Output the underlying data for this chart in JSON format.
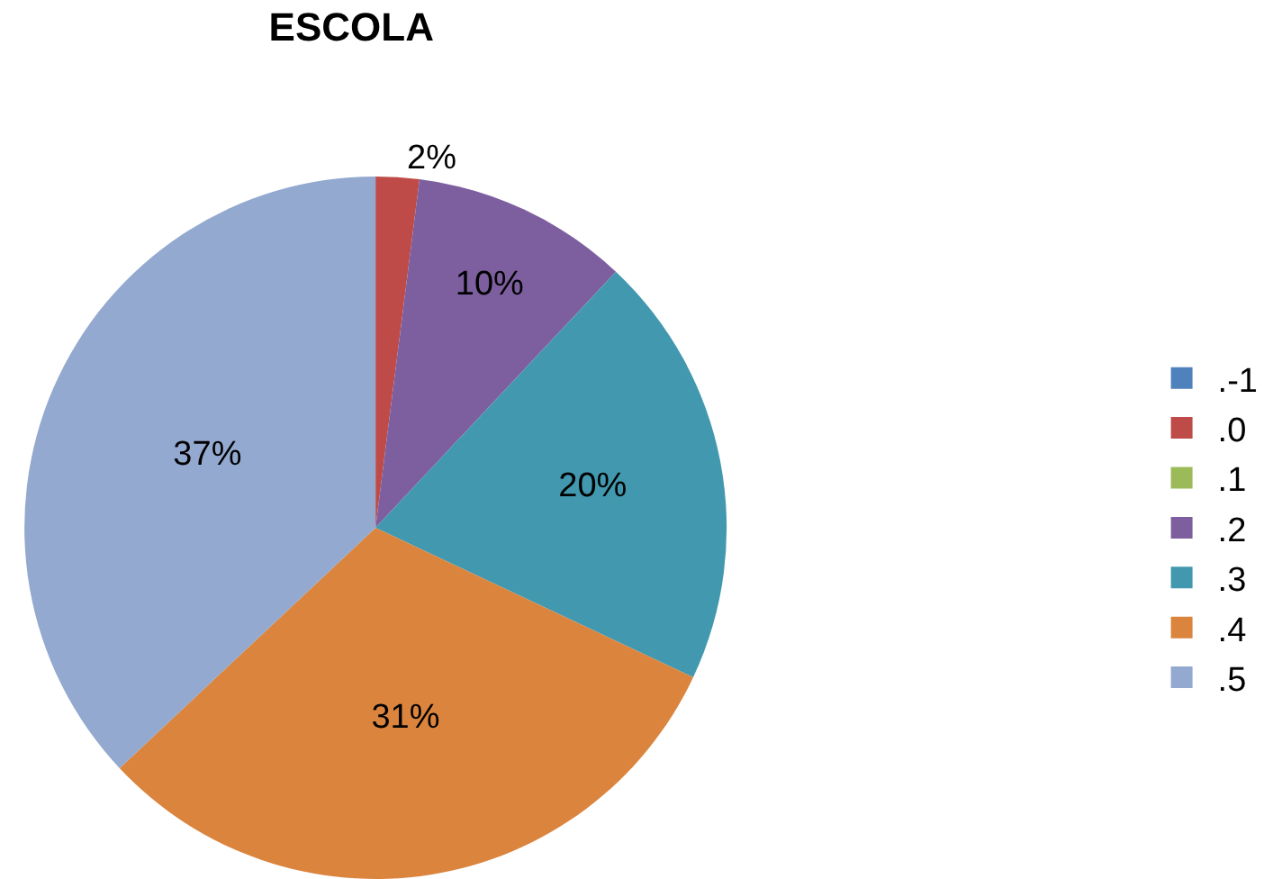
{
  "chart_data": {
    "type": "pie",
    "title": "ESCOLA",
    "categories": [
      ".-1",
      ".0",
      ".1",
      ".2",
      ".3",
      ".4",
      ".5"
    ],
    "values": [
      0,
      2,
      0,
      10,
      20,
      31,
      37
    ],
    "colors": [
      "#4f81bd",
      "#be4b48",
      "#9bbb59",
      "#7d5fa0",
      "#4198af",
      "#db843d",
      "#93a9cf"
    ],
    "value_labels": [
      null,
      "2%",
      null,
      "10%",
      "20%",
      "31%",
      "37%"
    ],
    "legend": "right"
  }
}
